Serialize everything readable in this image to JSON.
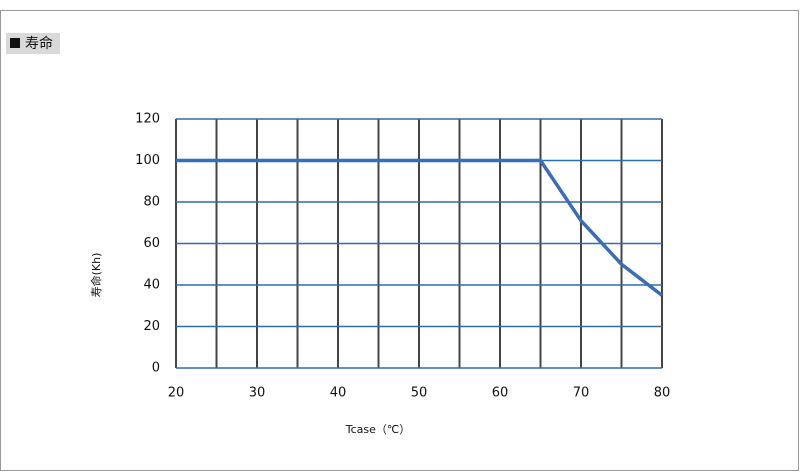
{
  "chart_data": {
    "type": "line",
    "title": "寿命",
    "x_label": "Tcase（℃）",
    "y_label": "寿命(Kh)",
    "series": [
      {
        "name": "寿命",
        "color": "#3b6db3",
        "x": [
          20,
          65,
          70,
          75,
          80
        ],
        "values": [
          100,
          100,
          71,
          50,
          35
        ]
      }
    ],
    "xlim": [
      20,
      80
    ],
    "xticks": [
      20,
      30,
      40,
      50,
      60,
      70,
      80
    ],
    "xminorticks": [
      25,
      35,
      45,
      55,
      65,
      75
    ],
    "ylim": [
      0,
      120
    ],
    "yticks": [
      0,
      20,
      40,
      60,
      80,
      100,
      120
    ],
    "grid": true,
    "xgrid_color": "#444444",
    "ygrid_color": "#2f6cb3"
  }
}
